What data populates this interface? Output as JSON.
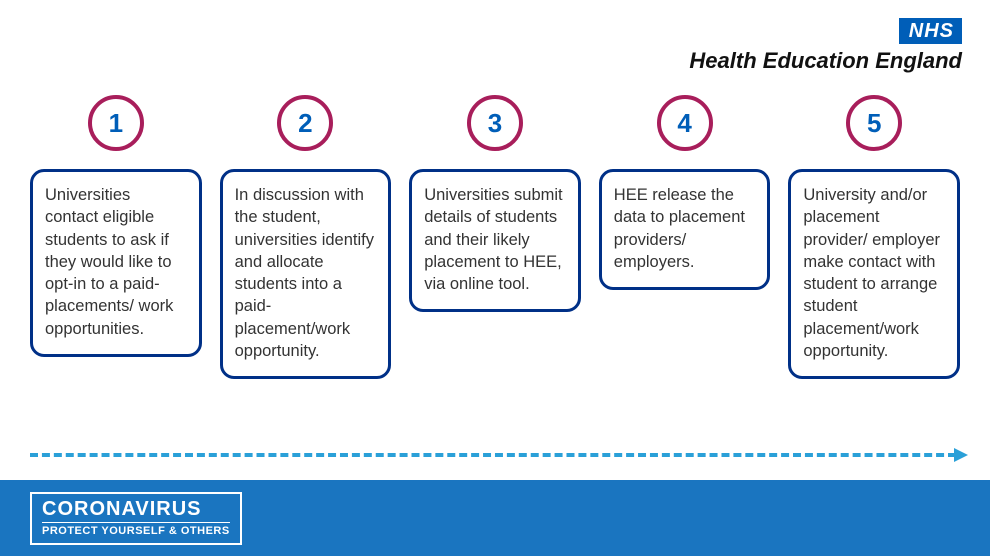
{
  "header": {
    "nhs_logo_text": "NHS",
    "title": "Health Education England"
  },
  "colors": {
    "nhs_blue": "#005eb8",
    "box_border": "#003087",
    "circle_ring": "#a81e5b",
    "circle_text": "#005eb8",
    "arrow": "#2aa0d8",
    "footer_bg": "#1a75c0",
    "body_text": "#333333"
  },
  "steps": [
    {
      "number": "1",
      "text": "Universities contact eligible students to ask if they would like to opt-in to a paid-placements/ work opportunities."
    },
    {
      "number": "2",
      "text": "In discussion with the student, universities identify and allocate students into a paid-placement/work opportunity."
    },
    {
      "number": "3",
      "text": "Universities submit details of students and their likely placement to HEE, via online tool."
    },
    {
      "number": "4",
      "text": "HEE release the data to placement providers/ employers."
    },
    {
      "number": "5",
      "text": "University and/or placement provider/ employer make contact with student to arrange student placement/work opportunity."
    }
  ],
  "footer": {
    "title": "CORONAVIRUS",
    "subtitle": "PROTECT YOURSELF & OTHERS"
  }
}
